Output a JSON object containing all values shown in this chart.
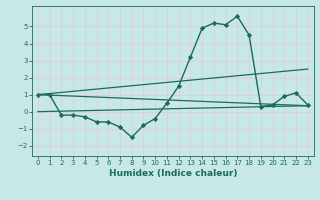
{
  "xlabel": "Humidex (Indice chaleur)",
  "background_color": "#c8e8e8",
  "grid_color": "#d4eded",
  "line_color": "#1a6b5a",
  "xlim": [
    -0.5,
    23.5
  ],
  "ylim": [
    -2.6,
    6.2
  ],
  "xticks": [
    0,
    1,
    2,
    3,
    4,
    5,
    6,
    7,
    8,
    9,
    10,
    11,
    12,
    13,
    14,
    15,
    16,
    17,
    18,
    19,
    20,
    21,
    22,
    23
  ],
  "yticks": [
    -2,
    -1,
    0,
    1,
    2,
    3,
    4,
    5
  ],
  "series": [
    {
      "x": [
        0,
        1,
        2,
        3,
        4,
        5,
        6,
        7,
        8,
        9,
        10,
        11,
        12,
        13,
        14,
        15,
        16,
        17,
        18,
        19,
        20,
        21,
        22,
        23
      ],
      "y": [
        1.0,
        1.0,
        -0.2,
        -0.2,
        -0.3,
        -0.6,
        -0.6,
        -0.9,
        -1.5,
        -0.8,
        -0.4,
        0.5,
        1.5,
        3.2,
        4.9,
        5.2,
        5.1,
        5.6,
        4.5,
        0.3,
        0.4,
        0.9,
        1.1,
        0.4
      ],
      "marker": "D",
      "markersize": 2.2,
      "linewidth": 1.0
    },
    {
      "x": [
        0,
        23
      ],
      "y": [
        1.0,
        2.5
      ],
      "marker": null,
      "linewidth": 0.9
    },
    {
      "x": [
        0,
        23
      ],
      "y": [
        1.0,
        0.35
      ],
      "marker": null,
      "linewidth": 0.9
    },
    {
      "x": [
        0,
        23
      ],
      "y": [
        0.0,
        0.35
      ],
      "marker": null,
      "linewidth": 0.9
    }
  ]
}
